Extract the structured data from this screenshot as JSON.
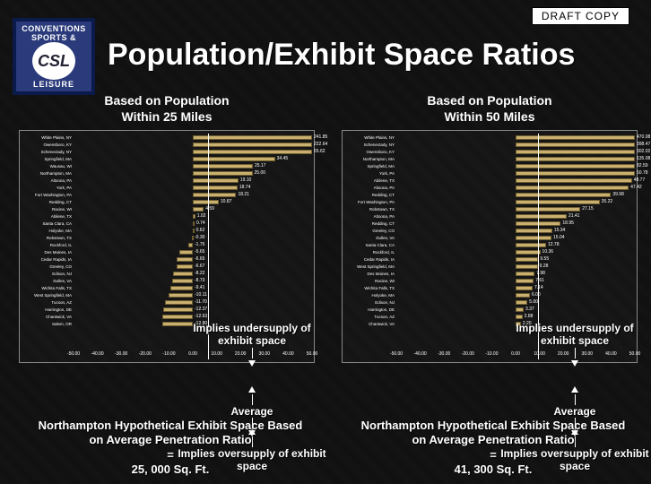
{
  "draft_label": "DRAFT  COPY",
  "title": "Population/Exhibit Space Ratios",
  "logo": {
    "line1": "CONVENTIONS",
    "line2": "SPORTS &",
    "center": "CSL",
    "line3": "LEISURE"
  },
  "annot": {
    "under": "Implies undersupply of exhibit space",
    "avg": "Average",
    "over": "Implies oversupply of exhibit space"
  },
  "left": {
    "heading": "Based on Population\nWithin 25 Miles",
    "chart": {
      "type": "bar-horizontal",
      "bar_color": "#c9b070",
      "bar_border": "#6e5d2e",
      "text_color": "#ffffff",
      "background_color": "transparent",
      "label_fontsize": 4.5,
      "value_fontsize": 5,
      "xlim": [
        -50,
        50
      ],
      "xtick_step": 10,
      "xticks": [
        "-50.00",
        "-40.00",
        "-30.00",
        "-20.00",
        "-10.00",
        "0.00",
        "10.00",
        "20.00",
        "30.00",
        "40.00",
        "50.00"
      ],
      "average_value": 6.5,
      "rows": [
        {
          "label": "White Plains, NY",
          "value": 241.85
        },
        {
          "label": "Owensboro, KY",
          "value": 222.64
        },
        {
          "label": "Schenectady, NY",
          "value": 65.62
        },
        {
          "label": "Springfield, MA",
          "value": 34.45
        },
        {
          "label": "Wausau, WI",
          "value": 25.17
        },
        {
          "label": "Northampton, MA",
          "value": 25.0
        },
        {
          "label": "Altoona, PA",
          "value": 19.1
        },
        {
          "label": "York, PA",
          "value": 18.74
        },
        {
          "label": "Fort Washington, PA",
          "value": 18.21
        },
        {
          "label": "Redding, CT",
          "value": 10.87
        },
        {
          "label": "Racine, WI",
          "value": 4.59
        },
        {
          "label": "Abilene, TX",
          "value": 1.02
        },
        {
          "label": "Santa Clara, CA",
          "value": 0.74
        },
        {
          "label": "Holyoke, MA",
          "value": 0.62
        },
        {
          "label": "Robstown, TX",
          "value": -0.3
        },
        {
          "label": "Rockford, IL",
          "value": -1.75
        },
        {
          "label": "Des Moines, IA",
          "value": -5.65
        },
        {
          "label": "Cedar Rapids, IA",
          "value": -6.65
        },
        {
          "label": "Greeley, CO",
          "value": -6.67
        },
        {
          "label": "Edison, NJ",
          "value": -8.22
        },
        {
          "label": "Dulles, VA",
          "value": -8.73
        },
        {
          "label": "Wichita Falls, TX",
          "value": -9.41
        },
        {
          "label": "West Springfield, MA",
          "value": -10.11
        },
        {
          "label": "Tucson, AZ",
          "value": -11.7
        },
        {
          "label": "Harrington, DE",
          "value": -12.37
        },
        {
          "label": "Chantwick, VA",
          "value": -12.63
        },
        {
          "label": "Salem, OR",
          "value": -12.8
        }
      ]
    },
    "caption": "Northampton Hypothetical Exhibit Space Based on Average Penetration Ratio\n=\n25, 000 Sq. Ft."
  },
  "right": {
    "heading": "Based on Population\nWithin 50 Miles",
    "chart": {
      "type": "bar-horizontal",
      "bar_color": "#c9b070",
      "bar_border": "#6e5d2e",
      "text_color": "#ffffff",
      "background_color": "transparent",
      "label_fontsize": 4.5,
      "value_fontsize": 5,
      "xlim": [
        -50,
        50
      ],
      "xtick_step": 10,
      "xticks": [
        "-50.00",
        "-40.00",
        "-30.00",
        "-20.00",
        "-10.00",
        "0.00",
        "10.00",
        "20.00",
        "30.00",
        "40.00",
        "50.00"
      ],
      "average_value": 9.5,
      "rows": [
        {
          "label": "White Plains, NY",
          "value": 470.08
        },
        {
          "label": "Schenectady, NY",
          "value": 398.47
        },
        {
          "label": "Owensboro, KY",
          "value": 302.02
        },
        {
          "label": "Northampton, MA",
          "value": 135.08
        },
        {
          "label": "Springfield, MA",
          "value": 82.59
        },
        {
          "label": "York, PA",
          "value": 50.78
        },
        {
          "label": "Abilene, TX",
          "value": 48.77
        },
        {
          "label": "Altoona, PA",
          "value": 47.42
        },
        {
          "label": "Redding, CT",
          "value": 39.98
        },
        {
          "label": "Fort Washington, PA",
          "value": 35.22
        },
        {
          "label": "Robstown, TX",
          "value": 27.15
        },
        {
          "label": "Altoona, PA",
          "value": 21.41
        },
        {
          "label": "Redding, CT",
          "value": 18.95
        },
        {
          "label": "Greeley, CO",
          "value": 15.34
        },
        {
          "label": "Dulles, VA",
          "value": 15.04
        },
        {
          "label": "Santa Clara, CA",
          "value": 12.78
        },
        {
          "label": "Rockford, IL",
          "value": 10.36
        },
        {
          "label": "Cedar Rapids, IA",
          "value": 9.55
        },
        {
          "label": "West Springfield, MA",
          "value": 9.28
        },
        {
          "label": "Des Moines, IA",
          "value": 7.98
        },
        {
          "label": "Racine, WI",
          "value": 7.61
        },
        {
          "label": "Wichita Falls, TX",
          "value": 7.14
        },
        {
          "label": "Holyoke, MA",
          "value": 6.0
        },
        {
          "label": "Edison, NJ",
          "value": 5.0
        },
        {
          "label": "Harrington, DE",
          "value": 3.37
        },
        {
          "label": "Tucson, AZ",
          "value": 2.88
        },
        {
          "label": "Chantwick, VA",
          "value": 2.2
        }
      ]
    },
    "caption": "Northampton Hypothetical Exhibit Space Based on Average Penetration Ratio\n=\n41, 300 Sq. Ft."
  }
}
